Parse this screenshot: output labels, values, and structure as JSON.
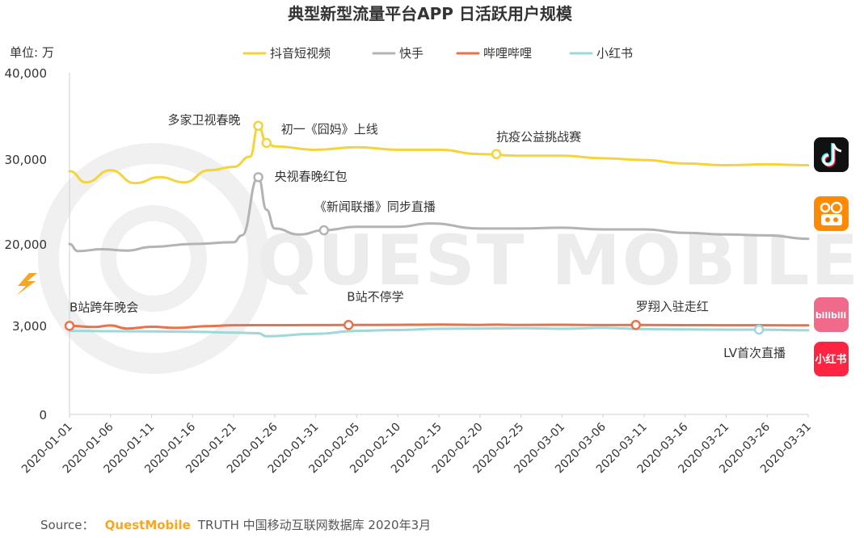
{
  "chart_data": {
    "type": "line",
    "title": "典型新型流量平台APP 日活跃用户规模",
    "unit_label": "单位: 万",
    "yticks": [
      "40,000",
      "30,000",
      "20,000",
      "3,000",
      "0"
    ],
    "xticks": [
      "2020-01-01",
      "2020-01-06",
      "2020-01-11",
      "2020-01-16",
      "2020-01-21",
      "2020-01-26",
      "2020-01-31",
      "2020-02-05",
      "2020-02-10",
      "2020-02-15",
      "2020-02-20",
      "2020-02-25",
      "2020-03-01",
      "2020-03-06",
      "2020-03-11",
      "2020-03-16",
      "2020-03-21",
      "2020-03-26",
      "2020-03-31"
    ],
    "x_start": "2020-01-01",
    "x_end": "2020-03-31",
    "y_scale": "broken (upper segment 20,000–40,000; lower segment 0–3,000)",
    "legend_position": "top",
    "series": [
      {
        "name": "抖音短视频",
        "color": "#f5d33a",
        "points": [
          {
            "x": "2020-01-01",
            "y": 28500
          },
          {
            "x": "2020-01-03",
            "y": 27200
          },
          {
            "x": "2020-01-06",
            "y": 28600
          },
          {
            "x": "2020-01-09",
            "y": 27100
          },
          {
            "x": "2020-01-12",
            "y": 27800
          },
          {
            "x": "2020-01-15",
            "y": 27200
          },
          {
            "x": "2020-01-18",
            "y": 28600
          },
          {
            "x": "2020-01-21",
            "y": 29000
          },
          {
            "x": "2020-01-23",
            "y": 30200
          },
          {
            "x": "2020-01-24",
            "y": 33800
          },
          {
            "x": "2020-01-25",
            "y": 31800
          },
          {
            "x": "2020-01-26",
            "y": 31400
          },
          {
            "x": "2020-01-31",
            "y": 31000
          },
          {
            "x": "2020-02-05",
            "y": 31300
          },
          {
            "x": "2020-02-10",
            "y": 31000
          },
          {
            "x": "2020-02-15",
            "y": 31000
          },
          {
            "x": "2020-02-20",
            "y": 30500
          },
          {
            "x": "2020-02-25",
            "y": 30300
          },
          {
            "x": "2020-03-01",
            "y": 30300
          },
          {
            "x": "2020-03-06",
            "y": 30000
          },
          {
            "x": "2020-03-11",
            "y": 29800
          },
          {
            "x": "2020-03-16",
            "y": 29400
          },
          {
            "x": "2020-03-21",
            "y": 29200
          },
          {
            "x": "2020-03-26",
            "y": 29300
          },
          {
            "x": "2020-03-31",
            "y": 29200
          }
        ]
      },
      {
        "name": "快手",
        "color": "#b3b3b3",
        "points": [
          {
            "x": "2020-01-01",
            "y": 20000
          },
          {
            "x": "2020-01-02",
            "y": 18500
          },
          {
            "x": "2020-01-05",
            "y": 18900
          },
          {
            "x": "2020-01-08",
            "y": 18600
          },
          {
            "x": "2020-01-11",
            "y": 19400
          },
          {
            "x": "2020-01-16",
            "y": 20000
          },
          {
            "x": "2020-01-21",
            "y": 20200
          },
          {
            "x": "2020-01-22",
            "y": 21000
          },
          {
            "x": "2020-01-24",
            "y": 27800
          },
          {
            "x": "2020-01-25",
            "y": 24000
          },
          {
            "x": "2020-01-26",
            "y": 21800
          },
          {
            "x": "2020-01-29",
            "y": 21100
          },
          {
            "x": "2020-02-01",
            "y": 21600
          },
          {
            "x": "2020-02-05",
            "y": 22000
          },
          {
            "x": "2020-02-10",
            "y": 22000
          },
          {
            "x": "2020-02-14",
            "y": 22400
          },
          {
            "x": "2020-02-20",
            "y": 21800
          },
          {
            "x": "2020-02-25",
            "y": 21800
          },
          {
            "x": "2020-03-01",
            "y": 21900
          },
          {
            "x": "2020-03-06",
            "y": 21700
          },
          {
            "x": "2020-03-11",
            "y": 21700
          },
          {
            "x": "2020-03-16",
            "y": 21300
          },
          {
            "x": "2020-03-21",
            "y": 21100
          },
          {
            "x": "2020-03-26",
            "y": 21000
          },
          {
            "x": "2020-03-31",
            "y": 20600
          }
        ]
      },
      {
        "name": "哔哩哔哩",
        "color": "#e8734a",
        "points": [
          {
            "x": "2020-01-01",
            "y": 2990
          },
          {
            "x": "2020-01-04",
            "y": 2950
          },
          {
            "x": "2020-01-06",
            "y": 3020
          },
          {
            "x": "2020-01-08",
            "y": 2900
          },
          {
            "x": "2020-01-11",
            "y": 2960
          },
          {
            "x": "2020-01-14",
            "y": 2920
          },
          {
            "x": "2020-01-18",
            "y": 2980
          },
          {
            "x": "2020-01-21",
            "y": 3060
          },
          {
            "x": "2020-01-26",
            "y": 3080
          },
          {
            "x": "2020-01-31",
            "y": 3100
          },
          {
            "x": "2020-02-04",
            "y": 3120
          },
          {
            "x": "2020-02-10",
            "y": 3150
          },
          {
            "x": "2020-02-15",
            "y": 3200
          },
          {
            "x": "2020-02-20",
            "y": 3140
          },
          {
            "x": "2020-02-22",
            "y": 3180
          },
          {
            "x": "2020-02-25",
            "y": 3120
          },
          {
            "x": "2020-03-01",
            "y": 3160
          },
          {
            "x": "2020-03-06",
            "y": 3100
          },
          {
            "x": "2020-03-10",
            "y": 3120
          },
          {
            "x": "2020-03-16",
            "y": 3080
          },
          {
            "x": "2020-03-21",
            "y": 3060
          },
          {
            "x": "2020-03-26",
            "y": 3060
          },
          {
            "x": "2020-03-31",
            "y": 3030
          }
        ]
      },
      {
        "name": "小红书",
        "color": "#9ed8d8",
        "points": [
          {
            "x": "2020-01-01",
            "y": 2820
          },
          {
            "x": "2020-01-06",
            "y": 2810
          },
          {
            "x": "2020-01-11",
            "y": 2800
          },
          {
            "x": "2020-01-16",
            "y": 2790
          },
          {
            "x": "2020-01-21",
            "y": 2760
          },
          {
            "x": "2020-01-24",
            "y": 2740
          },
          {
            "x": "2020-01-25",
            "y": 2640
          },
          {
            "x": "2020-01-31",
            "y": 2720
          },
          {
            "x": "2020-02-05",
            "y": 2820
          },
          {
            "x": "2020-02-10",
            "y": 2850
          },
          {
            "x": "2020-02-15",
            "y": 2890
          },
          {
            "x": "2020-02-20",
            "y": 2900
          },
          {
            "x": "2020-02-25",
            "y": 2910
          },
          {
            "x": "2020-03-01",
            "y": 2890
          },
          {
            "x": "2020-03-06",
            "y": 2920
          },
          {
            "x": "2020-03-11",
            "y": 2880
          },
          {
            "x": "2020-03-16",
            "y": 2870
          },
          {
            "x": "2020-03-21",
            "y": 2860
          },
          {
            "x": "2020-03-25",
            "y": 2860
          },
          {
            "x": "2020-03-31",
            "y": 2840
          }
        ]
      }
    ],
    "annotations": [
      {
        "text": "多家卫视春晚",
        "series": "抖音短视频",
        "x": "2020-01-24",
        "y": 33800
      },
      {
        "text": "初一《囧妈》上线",
        "series": "抖音短视频",
        "x": "2020-01-25",
        "y": 31800
      },
      {
        "text": "抗疫公益挑战赛",
        "series": "抖音短视频",
        "x": "2020-02-22",
        "y": 30500
      },
      {
        "text": "央视春晚红包",
        "series": "快手",
        "x": "2020-01-24",
        "y": 27800
      },
      {
        "text": "《新闻联播》同步直播",
        "series": "快手",
        "x": "2020-02-01",
        "y": 21600
      },
      {
        "text": "B站跨年晚会",
        "series": "哔哩哔哩",
        "x": "2020-01-01",
        "y": 2990
      },
      {
        "text": "B站不停学",
        "series": "哔哩哔哩",
        "x": "2020-02-04",
        "y": 3120
      },
      {
        "text": "罗翔入驻走红",
        "series": "哔哩哔哩",
        "x": "2020-03-10",
        "y": 3120
      },
      {
        "text": "LV首次直播",
        "series": "小红书",
        "x": "2020-03-25",
        "y": 2860
      }
    ],
    "app_icons": [
      {
        "name": "tiktok-icon",
        "label": "抖音短视频",
        "color": "#111111"
      },
      {
        "name": "kuaishou-icon",
        "label": "快手",
        "color": "#ff8a00"
      },
      {
        "name": "bilibili-icon",
        "label": "bilibili",
        "color": "#f06a8c"
      },
      {
        "name": "xiaohongshu-icon",
        "label": "小红书",
        "color": "#ff2442"
      }
    ]
  },
  "watermark": "QUEST MOBILE",
  "source": {
    "prefix": "Source：",
    "brand": "QuestMobile",
    "rest": "TRUTH 中国移动互联网数据库 2020年3月"
  }
}
